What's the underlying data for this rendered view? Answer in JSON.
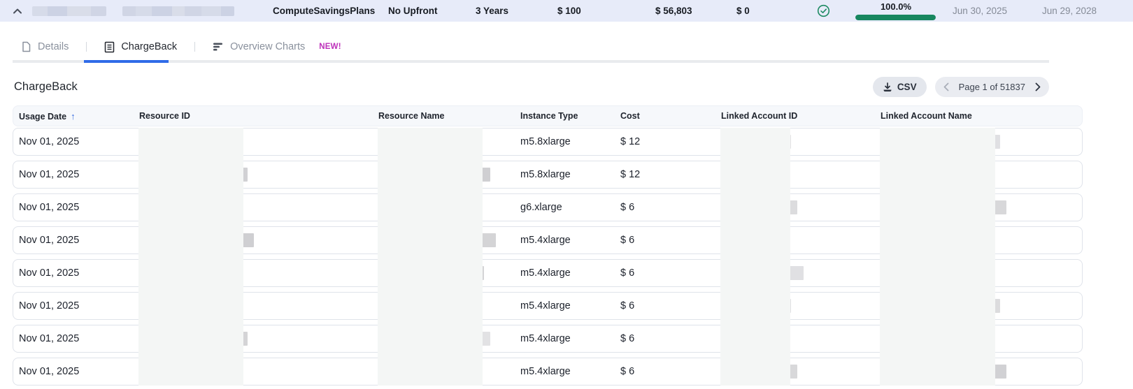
{
  "top_bar": {
    "redacted_blocks": 2,
    "plan_name": "ComputeSavingsPlans",
    "payment_option": "No Upfront",
    "term": "3 Years",
    "hourly_commitment": "$ 100",
    "total_commitment": "$ 56,803",
    "upfront_fee": "$ 0",
    "status_icon": "check-circle",
    "utilization": "100.0%",
    "utilization_pct": 100.0,
    "start_date": "Jun 30, 2025",
    "end_date": "Jun 29, 2028"
  },
  "tabs": {
    "details": {
      "label": "Details",
      "active": false
    },
    "chargeback": {
      "label": "ChargeBack",
      "active": true
    },
    "overview": {
      "label": "Overview Charts",
      "badge": "NEW!",
      "active": false
    }
  },
  "main": {
    "title": "ChargeBack",
    "csv_button": "CSV",
    "pagination": "Page 1 of 51837"
  },
  "table": {
    "columns": [
      "Usage Date",
      "Resource ID",
      "Resource Name",
      "Instance Type",
      "Cost",
      "Linked Account ID",
      "Linked Account Name"
    ],
    "sort": {
      "column": "Usage Date",
      "direction": "asc"
    },
    "redacted_columns": [
      "Resource ID",
      "Resource Name",
      "Linked Account ID",
      "Linked Account Name"
    ],
    "rows": [
      {
        "usage_date": "Nov 01, 2025",
        "instance_type": "m5.8xlarge",
        "cost": "$ 12"
      },
      {
        "usage_date": "Nov 01, 2025",
        "instance_type": "m5.8xlarge",
        "cost": "$ 12"
      },
      {
        "usage_date": "Nov 01, 2025",
        "instance_type": "g6.xlarge",
        "cost": "$ 6"
      },
      {
        "usage_date": "Nov 01, 2025",
        "instance_type": "m5.4xlarge",
        "cost": "$ 6"
      },
      {
        "usage_date": "Nov 01, 2025",
        "instance_type": "m5.4xlarge",
        "cost": "$ 6"
      },
      {
        "usage_date": "Nov 01, 2025",
        "instance_type": "m5.4xlarge",
        "cost": "$ 6"
      },
      {
        "usage_date": "Nov 01, 2025",
        "instance_type": "m5.4xlarge",
        "cost": "$ 6"
      },
      {
        "usage_date": "Nov 01, 2025",
        "instance_type": "m5.4xlarge",
        "cost": "$ 6"
      }
    ]
  },
  "colors": {
    "topbar_bg": "#e7ebf9",
    "accent_blue": "#2f6be8",
    "success_green": "#17865f",
    "new_badge": "#bd30ba",
    "header_bg": "#f6f8fb",
    "row_border": "#dfe3ea"
  }
}
